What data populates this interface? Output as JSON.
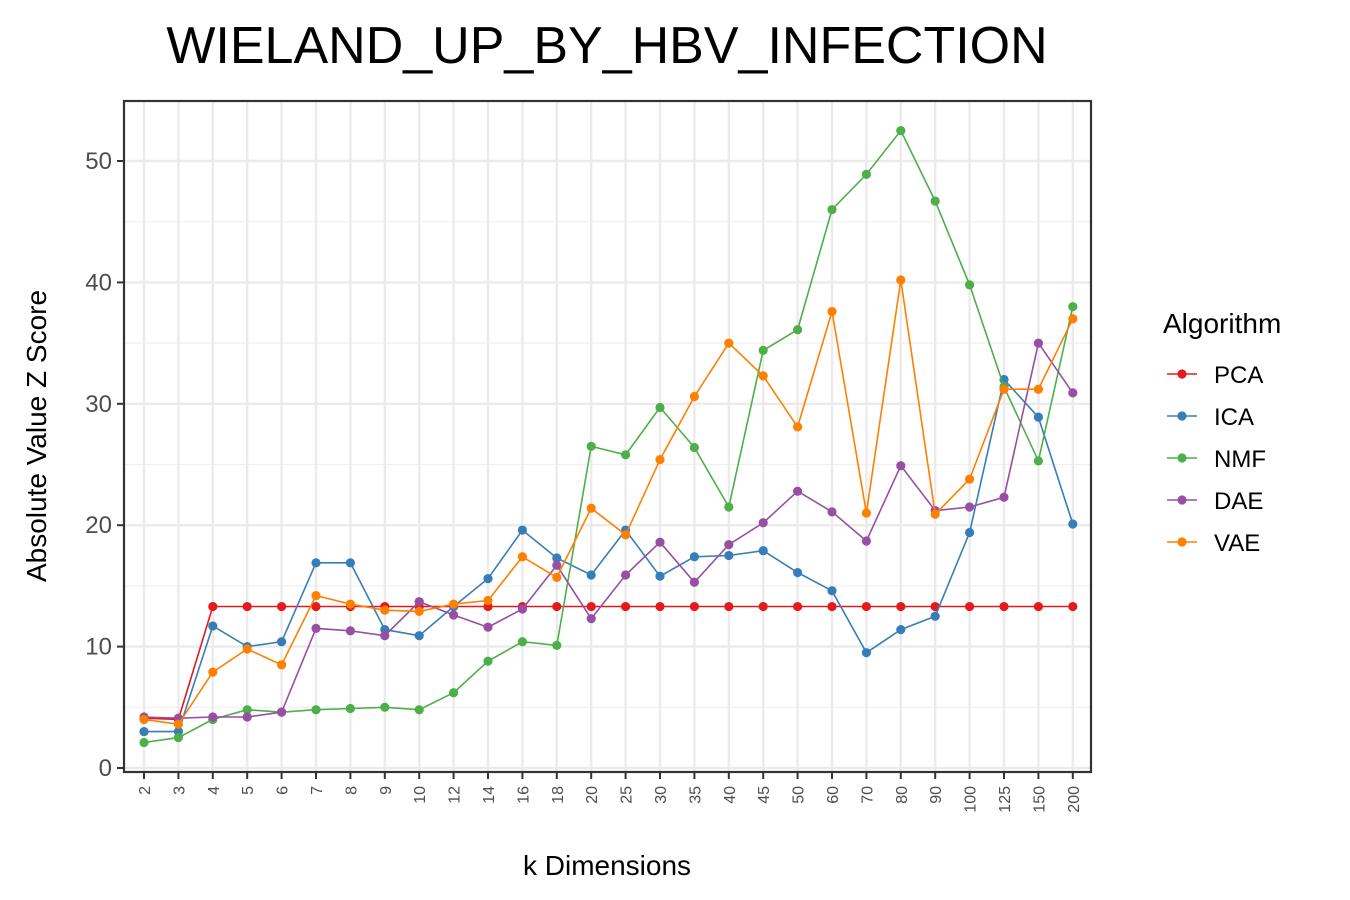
{
  "chart_data": {
    "type": "line",
    "title": "WIELAND_UP_BY_HBV_INFECTION",
    "xlabel": "k Dimensions",
    "ylabel": "Absolute Value Z Score",
    "ylim": [
      0,
      55
    ],
    "yticks": [
      0,
      10,
      20,
      30,
      40,
      50
    ],
    "grid": true,
    "legend_position": "right",
    "legend_title": "Algorithm",
    "categories": [
      "2",
      "3",
      "4",
      "5",
      "6",
      "7",
      "8",
      "9",
      "10",
      "12",
      "14",
      "16",
      "18",
      "20",
      "25",
      "30",
      "35",
      "40",
      "45",
      "50",
      "60",
      "70",
      "80",
      "90",
      "100",
      "125",
      "150",
      "200"
    ],
    "series": [
      {
        "name": "PCA",
        "color": "#e41a1c",
        "values": [
          4.1,
          4.0,
          13.3,
          13.3,
          13.3,
          13.3,
          13.3,
          13.3,
          13.3,
          13.3,
          13.3,
          13.3,
          13.3,
          13.3,
          13.3,
          13.3,
          13.3,
          13.3,
          13.3,
          13.3,
          13.3,
          13.3,
          13.3,
          13.3,
          13.3,
          13.3,
          13.3,
          13.3
        ]
      },
      {
        "name": "ICA",
        "color": "#377eb8",
        "values": [
          3.0,
          3.0,
          11.7,
          10.0,
          10.4,
          16.9,
          16.9,
          11.4,
          10.9,
          13.3,
          15.6,
          19.6,
          17.3,
          15.9,
          19.6,
          15.8,
          17.4,
          17.5,
          17.9,
          16.1,
          14.6,
          9.5,
          11.4,
          12.5,
          19.4,
          32.0,
          28.9,
          20.1
        ]
      },
      {
        "name": "NMF",
        "color": "#4daf4a",
        "values": [
          2.1,
          2.5,
          4.0,
          4.8,
          4.6,
          4.8,
          4.9,
          5.0,
          4.8,
          6.2,
          8.8,
          10.4,
          10.1,
          26.5,
          25.8,
          29.7,
          26.4,
          21.5,
          34.4,
          36.1,
          46.0,
          48.9,
          52.5,
          46.7,
          39.8,
          31.4,
          25.3,
          38.0
        ]
      },
      {
        "name": "DAE",
        "color": "#984ea3",
        "values": [
          4.2,
          4.1,
          4.2,
          4.2,
          4.6,
          11.5,
          11.3,
          10.9,
          13.7,
          12.6,
          11.6,
          13.1,
          16.7,
          12.3,
          15.9,
          18.6,
          15.3,
          18.4,
          20.2,
          22.8,
          21.1,
          18.7,
          24.9,
          21.2,
          21.5,
          22.3,
          35.0,
          30.9
        ]
      },
      {
        "name": "VAE",
        "color": "#ff7f00",
        "values": [
          4.0,
          3.6,
          7.9,
          9.8,
          8.5,
          14.2,
          13.5,
          13.0,
          12.9,
          13.5,
          13.8,
          17.4,
          15.7,
          21.4,
          19.2,
          25.4,
          30.6,
          35.0,
          32.3,
          28.1,
          37.6,
          21.0,
          40.2,
          20.9,
          23.8,
          31.2,
          31.2,
          37.0
        ]
      }
    ]
  }
}
